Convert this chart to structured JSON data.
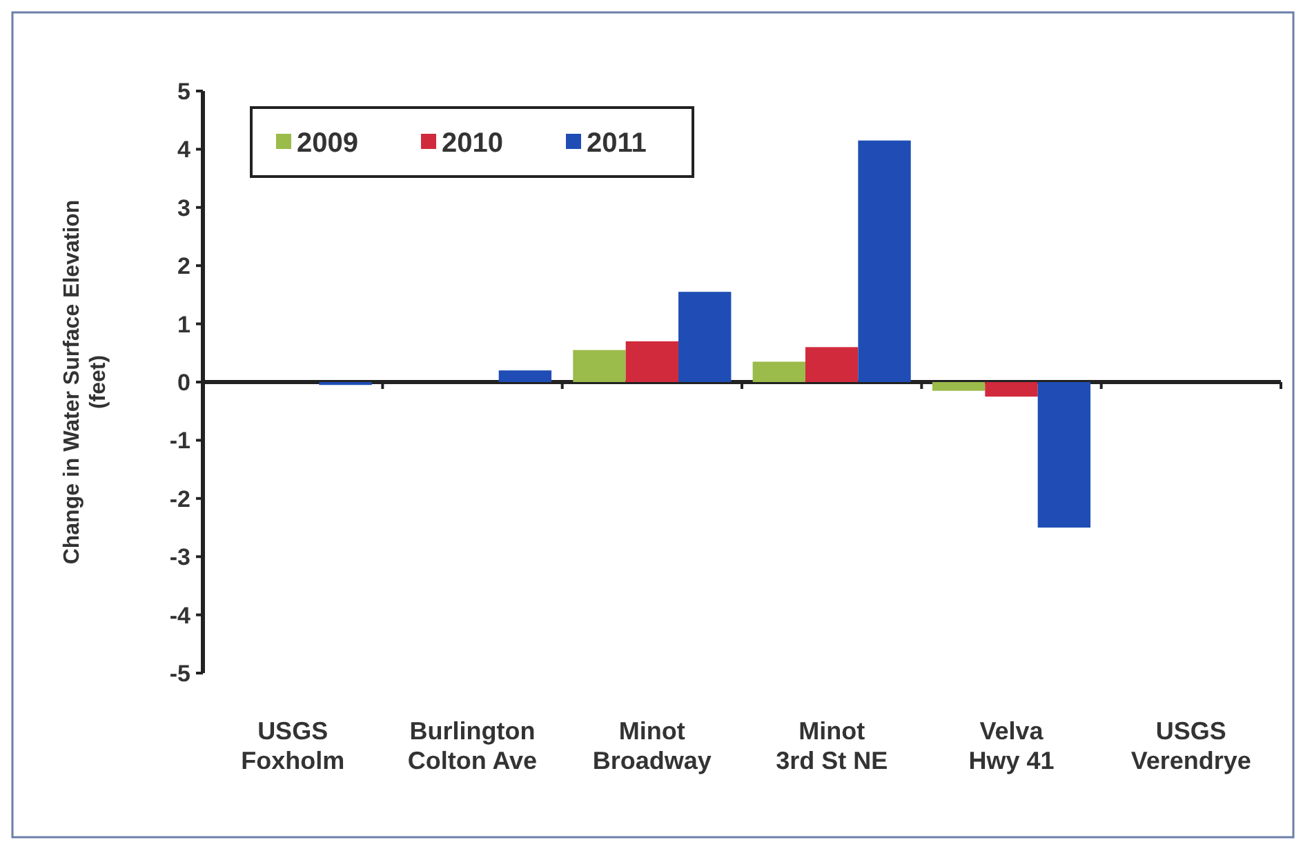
{
  "chart_data": {
    "type": "bar",
    "ylabel": "Change in Water Surface Elevation (feet)",
    "categories": [
      "USGS Foxholm",
      "Burlington Colton Ave",
      "Minot Broadway",
      "Minot 3rd St NE",
      "Velva Hwy 41",
      "USGS Verendrye"
    ],
    "series": [
      {
        "name": "2009",
        "color": "#9bbb4a",
        "values": [
          0,
          0,
          0.55,
          0.35,
          -0.15,
          0
        ]
      },
      {
        "name": "2010",
        "color": "#d02a3c",
        "values": [
          0,
          0,
          0.7,
          0.6,
          -0.25,
          0
        ]
      },
      {
        "name": "2011",
        "color": "#1f4db5",
        "values": [
          -0.05,
          0.2,
          1.55,
          4.15,
          -2.5,
          0
        ]
      }
    ],
    "ylim": [
      -5,
      5
    ],
    "yticks": [
      -5,
      -4,
      -3,
      -2,
      -1,
      0,
      1,
      2,
      3,
      4,
      5
    ],
    "legend": "top left"
  }
}
